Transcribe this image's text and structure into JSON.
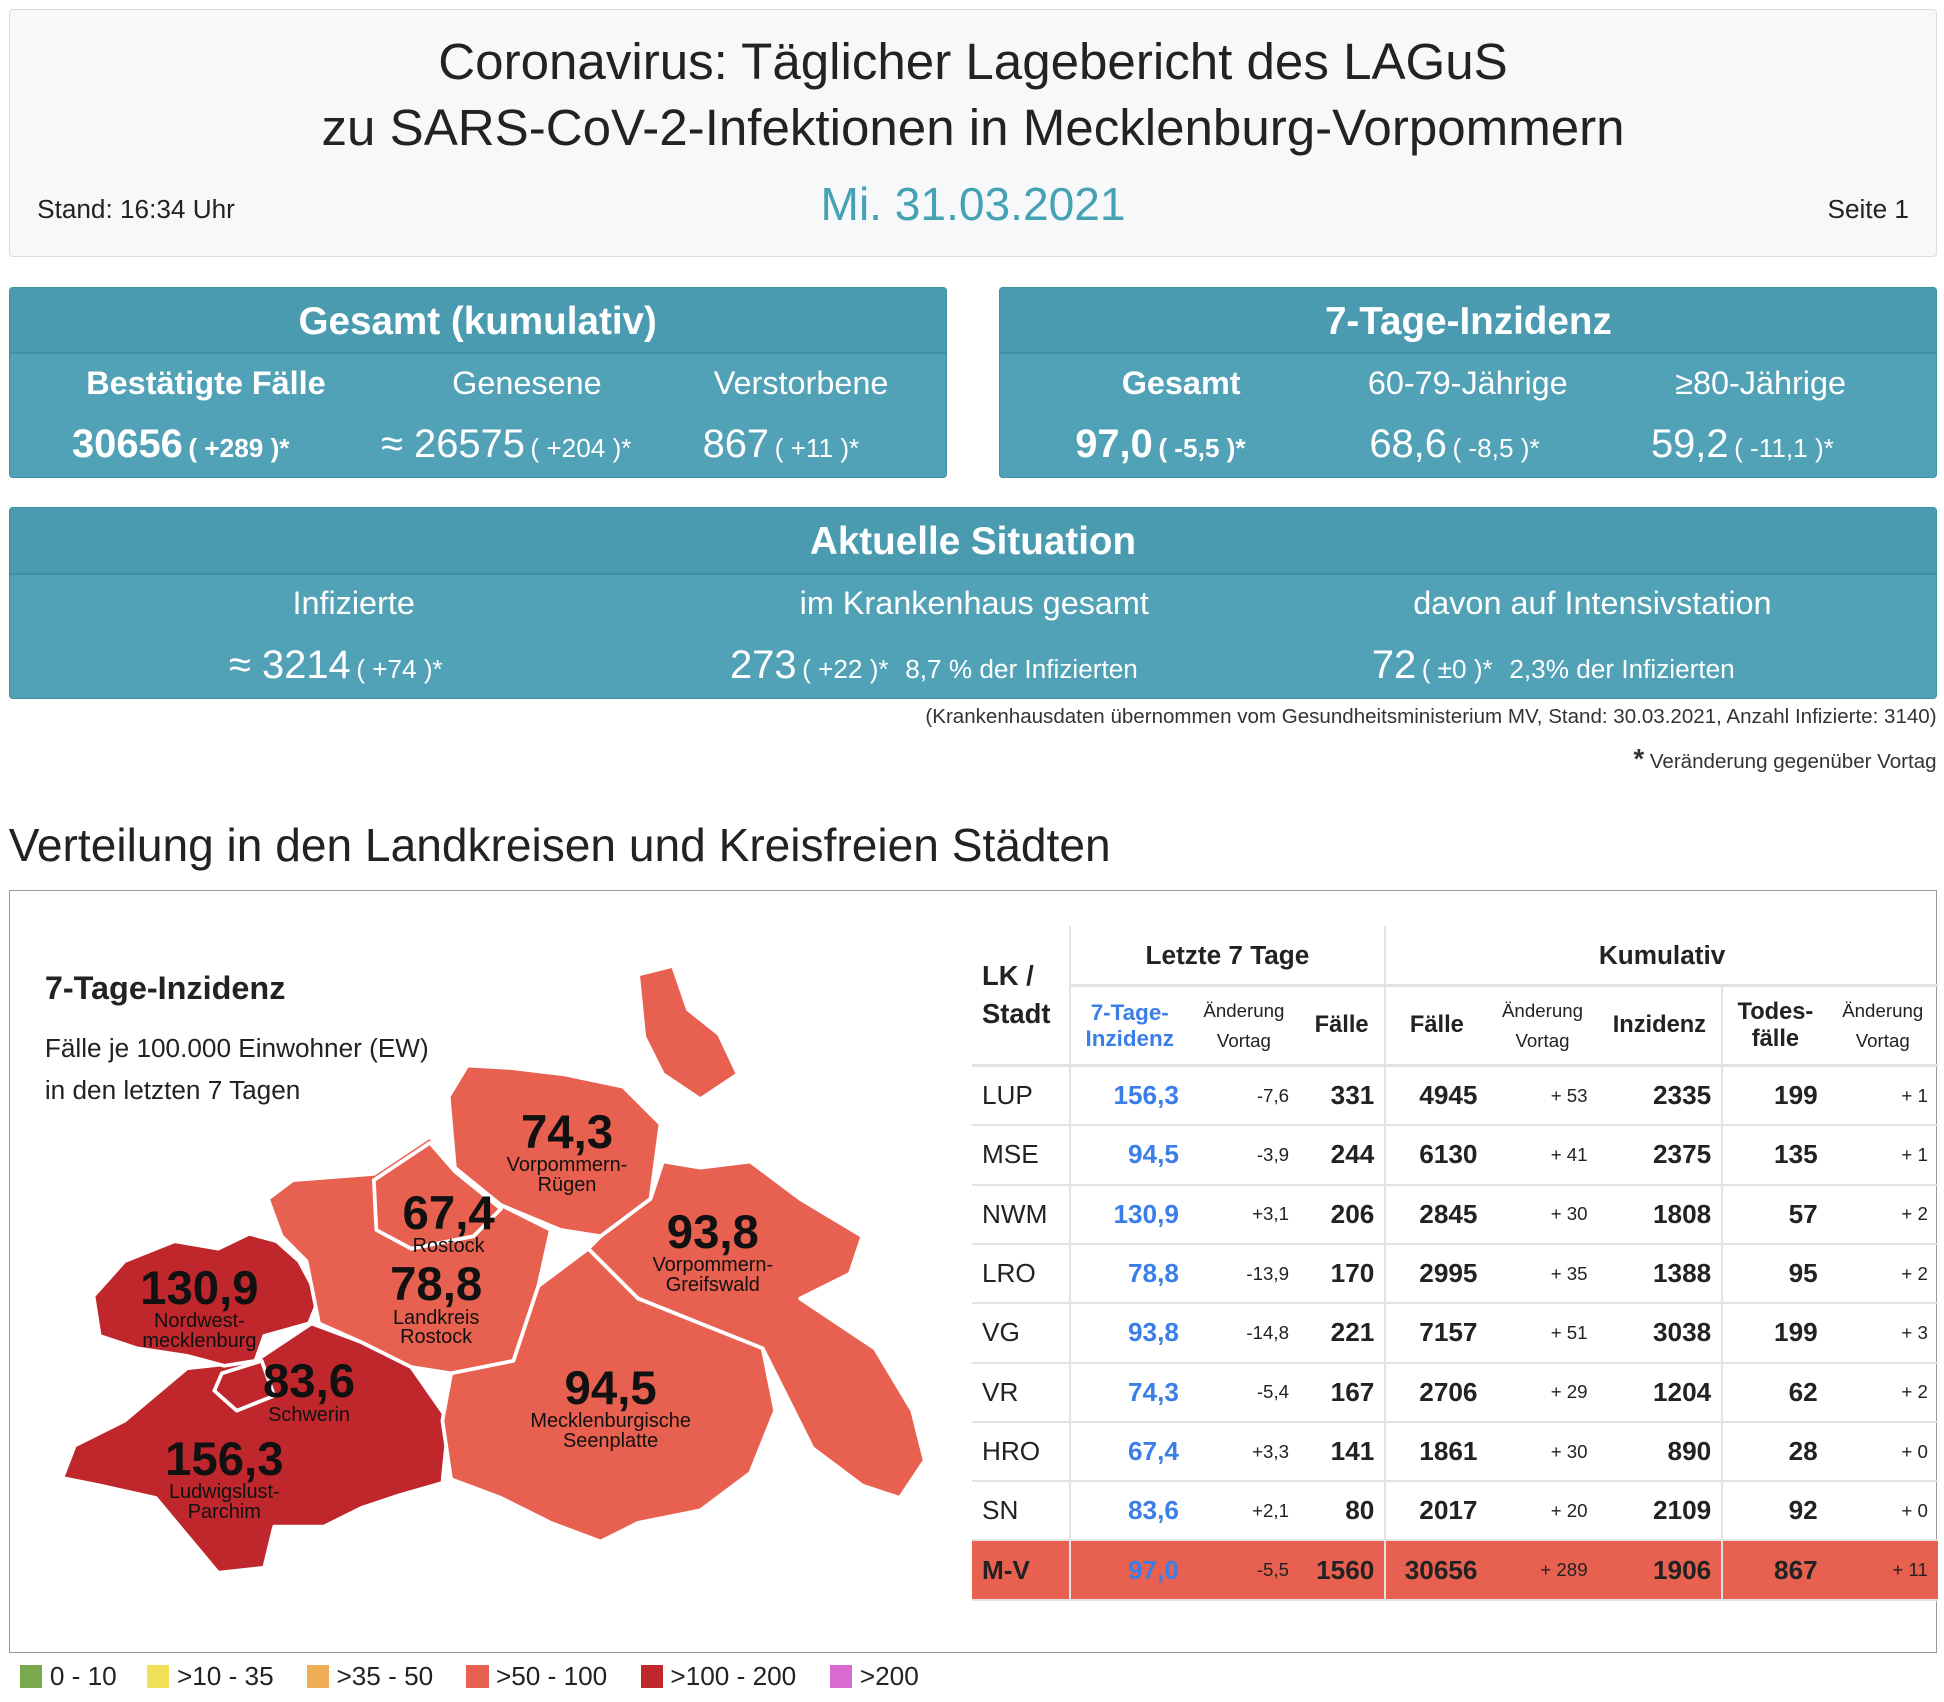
{
  "header": {
    "title_line1": "Coronavirus: Täglicher Lagebericht des LAGuS",
    "title_line2": "zu SARS-CoV-2-Infektionen in Mecklenburg-Vorpommern",
    "date": "Mi. 31.03.2021",
    "stand": "Stand: 16:34 Uhr",
    "page": "Seite 1"
  },
  "gesamt": {
    "title": "Gesamt (kumulativ)",
    "items": [
      {
        "label": "Bestätigte Fälle",
        "value": "30656",
        "change": "( +289 )*"
      },
      {
        "label": "Genesene",
        "value": "≈ 26575",
        "change": "( +204 )*"
      },
      {
        "label": "Verstorbene",
        "value": "867",
        "change": "( +11 )*"
      }
    ]
  },
  "inzidenz": {
    "title": "7-Tage-Inzidenz",
    "items": [
      {
        "label": "Gesamt",
        "value": "97,0",
        "change": "( -5,5 )*"
      },
      {
        "label": "60-79-Jährige",
        "value": "68,6",
        "change": "( -8,5 )*"
      },
      {
        "label": "≥80-Jährige",
        "value": "59,2",
        "change": "( -11,1 )*"
      }
    ]
  },
  "aktuell": {
    "title": "Aktuelle Situation",
    "items": [
      {
        "label": "Infizierte",
        "value": "≈ 3214",
        "change": "( +74 )*",
        "extra": ""
      },
      {
        "label": "im Krankenhaus gesamt",
        "value": "273",
        "change": "( +22 )*",
        "extra": "8,7 % der Infizierten"
      },
      {
        "label": "davon auf Intensivstation",
        "value": "72",
        "change": "( ±0 )*",
        "extra": "2,3% der Infizierten"
      }
    ]
  },
  "notes": {
    "hospital": "(Krankenhausdaten übernommen vom Gesundheitsministerium MV, Stand: 30.03.2021, Anzahl Infizierte: 3140)",
    "star": "*",
    "change": "Veränderung gegenüber Vortag"
  },
  "section_title": "Verteilung in den Landkreisen und Kreisfreien Städten",
  "map": {
    "title": "7-Tage-Inzidenz",
    "sub1": "Fälle je 100.000 Einwohner (EW)",
    "sub2": "in den letzten 7 Tagen",
    "labels": [
      {
        "value": "74,3",
        "name1": "Vorpommern-",
        "name2": "Rügen"
      },
      {
        "value": "67,4",
        "name1": "Rostock",
        "name2": ""
      },
      {
        "value": "78,8",
        "name1": "Landkreis",
        "name2": "Rostock"
      },
      {
        "value": "93,8",
        "name1": "Vorpommern-",
        "name2": "Greifswald"
      },
      {
        "value": "130,9",
        "name1": "Nordwest-",
        "name2": "mecklenburg"
      },
      {
        "value": "83,6",
        "name1": "Schwerin",
        "name2": ""
      },
      {
        "value": "94,5",
        "name1": "Mecklenburgische",
        "name2": "Seenplatte"
      },
      {
        "value": "156,3",
        "name1": "Ludwigslust-",
        "name2": "Parchim"
      }
    ],
    "colors": {
      "high": "#c0272d",
      "mid": "#e8604f"
    }
  },
  "table": {
    "group1": "Letzte 7 Tage",
    "group2": "Kumulativ",
    "col_lk1": "LK /",
    "col_lk2": "Stadt",
    "h_inz1": "7-Tage-",
    "h_inz2": "Inzidenz",
    "h_chg1": "Änderung",
    "h_chg2": "Vortag",
    "h_faelle": "Fälle",
    "h_kfaelle": "Fälle",
    "h_kinz": "Inzidenz",
    "h_tod1": "Todes-",
    "h_tod2": "fälle",
    "rows": [
      [
        "LUP",
        "156,3",
        "-7,6",
        "331",
        "4945",
        "+ 53",
        "2335",
        "199",
        "+ 1"
      ],
      [
        "MSE",
        "94,5",
        "-3,9",
        "244",
        "6130",
        "+ 41",
        "2375",
        "135",
        "+ 1"
      ],
      [
        "NWM",
        "130,9",
        "+3,1",
        "206",
        "2845",
        "+ 30",
        "1808",
        "57",
        "+ 2"
      ],
      [
        "LRO",
        "78,8",
        "-13,9",
        "170",
        "2995",
        "+ 35",
        "1388",
        "95",
        "+ 2"
      ],
      [
        "VG",
        "93,8",
        "-14,8",
        "221",
        "7157",
        "+ 51",
        "3038",
        "199",
        "+ 3"
      ],
      [
        "VR",
        "74,3",
        "-5,4",
        "167",
        "2706",
        "+ 29",
        "1204",
        "62",
        "+ 2"
      ],
      [
        "HRO",
        "67,4",
        "+3,3",
        "141",
        "1861",
        "+ 30",
        "890",
        "28",
        "+ 0"
      ],
      [
        "SN",
        "83,6",
        "+2,1",
        "80",
        "2017",
        "+ 20",
        "2109",
        "92",
        "+ 0"
      ]
    ],
    "total": [
      "M-V",
      "97,0",
      "-5,5",
      "1560",
      "30656",
      "+ 289",
      "1906",
      "867",
      "+ 11"
    ]
  },
  "legend": [
    {
      "label": "0 - 10",
      "color": "#7aa84f"
    },
    {
      "label": ">10 - 35",
      "color": "#f0e05a"
    },
    {
      "label": ">35 - 50",
      "color": "#efae56"
    },
    {
      "label": ">50 - 100",
      "color": "#e8604f"
    },
    {
      "label": ">100 - 200",
      "color": "#c0272d"
    },
    {
      "label": ">200",
      "color": "#d86ad0"
    }
  ]
}
